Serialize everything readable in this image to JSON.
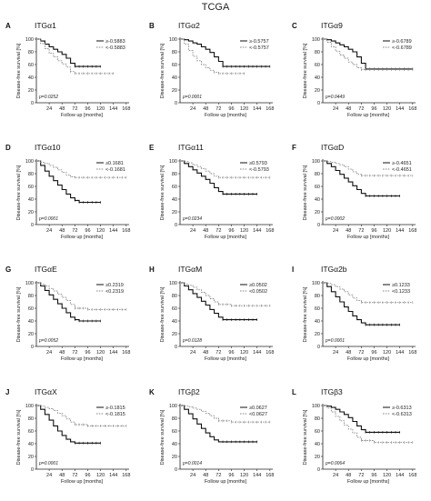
{
  "title": "TCGA",
  "x_ticks": [
    24,
    48,
    72,
    96,
    120,
    144,
    168
  ],
  "y_ticks": [
    0,
    20,
    40,
    60,
    80,
    100
  ],
  "xlabel": "Follow up [months]",
  "ylabel": "Disease-free survival [%]",
  "colors": {
    "high": "#111111",
    "low": "#8a8a8a"
  },
  "chart_data": [
    {
      "type": "line",
      "letter": "A",
      "title": "ITGα1",
      "xlim": [
        0,
        170
      ],
      "ylim": [
        0,
        100
      ],
      "p_value": "p=0.0252",
      "series": [
        {
          "name": "≥-0.5883",
          "x": [
            0,
            8,
            16,
            24,
            32,
            40,
            48,
            56,
            64,
            72,
            80,
            96,
            120
          ],
          "y": [
            100,
            97,
            92,
            88,
            84,
            80,
            76,
            70,
            62,
            57,
            57,
            57,
            57
          ]
        },
        {
          "name": "<-0.5883",
          "x": [
            0,
            8,
            16,
            24,
            32,
            40,
            48,
            56,
            64,
            72,
            96,
            144
          ],
          "y": [
            100,
            93,
            85,
            78,
            72,
            66,
            61,
            56,
            49,
            46,
            46,
            46
          ]
        }
      ]
    },
    {
      "type": "line",
      "letter": "B",
      "title": "ITGα2",
      "xlim": [
        0,
        170
      ],
      "ylim": [
        0,
        100
      ],
      "p_value": "p=0.0001",
      "series": [
        {
          "name": "≥-0.5757",
          "x": [
            0,
            8,
            16,
            24,
            32,
            40,
            48,
            56,
            64,
            72,
            80,
            96,
            144,
            168
          ],
          "y": [
            100,
            99,
            97,
            94,
            92,
            88,
            84,
            79,
            72,
            65,
            57,
            57,
            57,
            57
          ]
        },
        {
          "name": "<-0.5757",
          "x": [
            0,
            8,
            16,
            24,
            32,
            40,
            48,
            56,
            64,
            72,
            96,
            120
          ],
          "y": [
            100,
            92,
            82,
            73,
            66,
            60,
            55,
            51,
            48,
            46,
            46,
            46
          ]
        }
      ]
    },
    {
      "type": "line",
      "letter": "C",
      "title": "ITGα9",
      "xlim": [
        0,
        170
      ],
      "ylim": [
        0,
        100
      ],
      "p_value": "p=0.0449",
      "series": [
        {
          "name": "≥-0.6789",
          "x": [
            0,
            8,
            16,
            24,
            32,
            40,
            48,
            56,
            64,
            72,
            80,
            96,
            120,
            168
          ],
          "y": [
            100,
            99,
            97,
            94,
            91,
            88,
            84,
            80,
            72,
            62,
            53,
            53,
            53,
            53
          ]
        },
        {
          "name": "<-0.6789",
          "x": [
            0,
            8,
            16,
            24,
            32,
            40,
            48,
            56,
            64,
            72,
            96,
            144,
            168
          ],
          "y": [
            100,
            95,
            88,
            81,
            75,
            70,
            64,
            60,
            55,
            52,
            52,
            52,
            52
          ]
        }
      ]
    },
    {
      "type": "line",
      "letter": "D",
      "title": "ITGα10",
      "xlim": [
        0,
        170
      ],
      "ylim": [
        0,
        100
      ],
      "p_value": "p=0.0001",
      "series": [
        {
          "name": "≥0.1681",
          "x": [
            0,
            8,
            16,
            24,
            32,
            40,
            48,
            56,
            64,
            72,
            80,
            96,
            120
          ],
          "y": [
            100,
            93,
            84,
            76,
            69,
            62,
            55,
            48,
            42,
            38,
            35,
            35,
            35
          ]
        },
        {
          "name": "<-0.1681",
          "x": [
            0,
            8,
            16,
            24,
            32,
            40,
            48,
            56,
            64,
            72,
            96,
            144,
            168
          ],
          "y": [
            100,
            98,
            96,
            93,
            90,
            86,
            82,
            78,
            75,
            74,
            74,
            74,
            74
          ]
        }
      ]
    },
    {
      "type": "line",
      "letter": "E",
      "title": "ITGα11",
      "xlim": [
        0,
        170
      ],
      "ylim": [
        0,
        100
      ],
      "p_value": "p=0.0234",
      "series": [
        {
          "name": "≥0.5793",
          "x": [
            0,
            8,
            16,
            24,
            32,
            40,
            48,
            56,
            64,
            72,
            80,
            96,
            120,
            144
          ],
          "y": [
            100,
            96,
            91,
            86,
            81,
            76,
            71,
            65,
            58,
            52,
            48,
            48,
            48,
            48
          ]
        },
        {
          "name": "<-0.5793",
          "x": [
            0,
            8,
            16,
            24,
            32,
            40,
            48,
            56,
            64,
            72,
            96,
            144,
            168
          ],
          "y": [
            100,
            99,
            97,
            94,
            91,
            88,
            84,
            80,
            76,
            74,
            74,
            74,
            74
          ]
        }
      ]
    },
    {
      "type": "line",
      "letter": "F",
      "title": "ITGαD",
      "xlim": [
        0,
        170
      ],
      "ylim": [
        0,
        100
      ],
      "p_value": "p=0.0002",
      "series": [
        {
          "name": "≥-0.4651",
          "x": [
            0,
            8,
            16,
            24,
            32,
            40,
            48,
            56,
            64,
            72,
            80,
            96,
            120,
            144
          ],
          "y": [
            100,
            96,
            91,
            85,
            79,
            73,
            67,
            61,
            55,
            49,
            45,
            45,
            45,
            45
          ]
        },
        {
          "name": "<-0.4651",
          "x": [
            0,
            8,
            16,
            24,
            32,
            40,
            48,
            56,
            64,
            72,
            96,
            144,
            168
          ],
          "y": [
            100,
            99,
            98,
            96,
            94,
            91,
            87,
            83,
            79,
            77,
            77,
            77,
            77
          ]
        }
      ]
    },
    {
      "type": "line",
      "letter": "G",
      "title": "ITGαE",
      "xlim": [
        0,
        170
      ],
      "ylim": [
        0,
        100
      ],
      "p_value": "p=0.0052",
      "series": [
        {
          "name": "≥0.2319",
          "x": [
            0,
            8,
            16,
            24,
            32,
            40,
            48,
            56,
            64,
            72,
            80,
            96,
            120
          ],
          "y": [
            100,
            95,
            88,
            81,
            74,
            67,
            60,
            53,
            46,
            42,
            40,
            40,
            40
          ]
        },
        {
          "name": "<0.2319",
          "x": [
            0,
            8,
            16,
            24,
            32,
            40,
            48,
            56,
            64,
            72,
            96,
            144,
            168
          ],
          "y": [
            100,
            98,
            95,
            91,
            87,
            82,
            77,
            72,
            66,
            60,
            58,
            58,
            58
          ]
        }
      ]
    },
    {
      "type": "line",
      "letter": "H",
      "title": "ITGαM",
      "xlim": [
        0,
        170
      ],
      "ylim": [
        0,
        100
      ],
      "p_value": "p=0.0128",
      "series": [
        {
          "name": "≥0.0502",
          "x": [
            0,
            8,
            16,
            24,
            32,
            40,
            48,
            56,
            64,
            72,
            80,
            96,
            120,
            144
          ],
          "y": [
            100,
            95,
            89,
            83,
            77,
            71,
            65,
            58,
            52,
            46,
            42,
            42,
            42,
            42
          ]
        },
        {
          "name": "<0.0502",
          "x": [
            0,
            8,
            16,
            24,
            32,
            40,
            48,
            56,
            64,
            72,
            96,
            144,
            168
          ],
          "y": [
            100,
            98,
            96,
            93,
            89,
            85,
            80,
            75,
            70,
            66,
            64,
            64,
            64
          ]
        }
      ]
    },
    {
      "type": "line",
      "letter": "I",
      "title": "ITGα2b",
      "xlim": [
        0,
        170
      ],
      "ylim": [
        0,
        100
      ],
      "p_value": "p=0.0001",
      "series": [
        {
          "name": "≥0.1233",
          "x": [
            0,
            8,
            16,
            24,
            32,
            40,
            48,
            56,
            64,
            72,
            80,
            96,
            120,
            144
          ],
          "y": [
            100,
            94,
            86,
            78,
            70,
            62,
            55,
            48,
            42,
            37,
            34,
            34,
            34,
            34
          ]
        },
        {
          "name": "<0.1233",
          "x": [
            0,
            8,
            16,
            24,
            32,
            40,
            48,
            56,
            64,
            72,
            96,
            144,
            168
          ],
          "y": [
            100,
            99,
            97,
            94,
            90,
            86,
            81,
            76,
            72,
            69,
            69,
            69,
            69
          ]
        }
      ]
    },
    {
      "type": "line",
      "letter": "J",
      "title": "ITGαX",
      "xlim": [
        0,
        170
      ],
      "ylim": [
        0,
        100
      ],
      "p_value": "p=0.0001",
      "series": [
        {
          "name": "≥-0.1815",
          "x": [
            0,
            8,
            16,
            24,
            32,
            40,
            48,
            56,
            64,
            72,
            80,
            96,
            120
          ],
          "y": [
            100,
            94,
            86,
            77,
            68,
            60,
            53,
            47,
            43,
            41,
            41,
            41,
            41
          ]
        },
        {
          "name": "<-0.1815",
          "x": [
            0,
            8,
            16,
            24,
            32,
            40,
            48,
            56,
            64,
            72,
            96,
            144,
            168
          ],
          "y": [
            100,
            99,
            97,
            95,
            92,
            88,
            84,
            79,
            74,
            70,
            68,
            68,
            68
          ]
        }
      ]
    },
    {
      "type": "line",
      "letter": "K",
      "title": "ITGβ2",
      "xlim": [
        0,
        170
      ],
      "ylim": [
        0,
        100
      ],
      "p_value": "p=0.0014",
      "series": [
        {
          "name": "≥0.0627",
          "x": [
            0,
            8,
            16,
            24,
            32,
            40,
            48,
            56,
            64,
            72,
            80,
            96,
            120,
            144
          ],
          "y": [
            100,
            94,
            87,
            79,
            71,
            64,
            57,
            51,
            46,
            43,
            43,
            43,
            43,
            43
          ]
        },
        {
          "name": "<0.0627",
          "x": [
            0,
            8,
            16,
            24,
            32,
            40,
            48,
            56,
            64,
            72,
            96,
            144,
            168
          ],
          "y": [
            100,
            99,
            98,
            96,
            94,
            91,
            88,
            84,
            80,
            76,
            74,
            74,
            74
          ]
        }
      ]
    },
    {
      "type": "line",
      "letter": "L",
      "title": "ITGβ3",
      "xlim": [
        0,
        170
      ],
      "ylim": [
        0,
        100
      ],
      "p_value": "p=0.0064",
      "series": [
        {
          "name": "≥-0.6313",
          "x": [
            0,
            8,
            16,
            24,
            32,
            40,
            48,
            56,
            64,
            72,
            80,
            96,
            120,
            144
          ],
          "y": [
            100,
            99,
            97,
            94,
            90,
            86,
            81,
            75,
            68,
            62,
            58,
            58,
            58,
            58
          ]
        },
        {
          "name": "<-0.6313",
          "x": [
            0,
            8,
            16,
            24,
            32,
            40,
            48,
            56,
            64,
            72,
            96,
            144,
            168
          ],
          "y": [
            100,
            96,
            90,
            83,
            76,
            69,
            63,
            57,
            50,
            45,
            42,
            42,
            42
          ]
        }
      ]
    }
  ]
}
